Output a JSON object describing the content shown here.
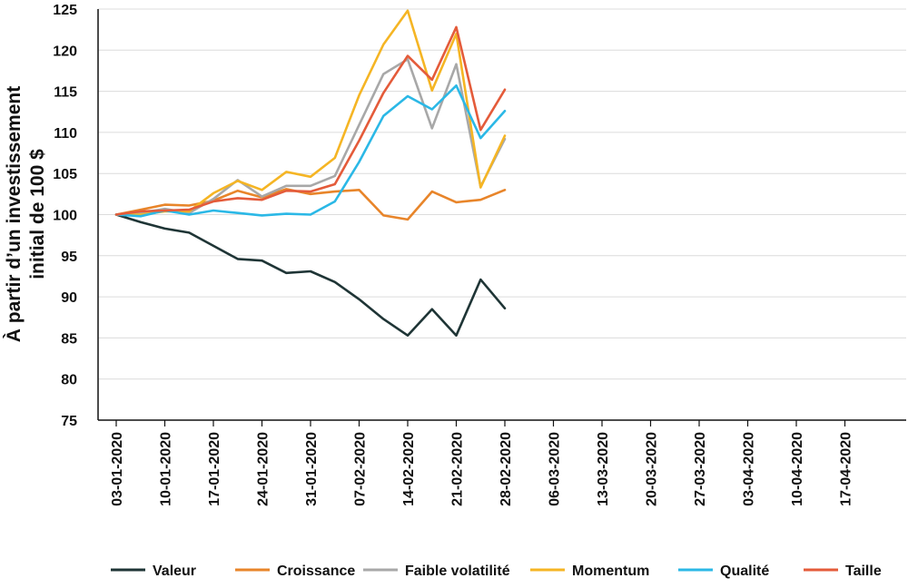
{
  "chart_data": {
    "type": "line",
    "ylabel_lines": [
      "À partir d’un investissement",
      "initial de 100 $"
    ],
    "ylim": [
      75,
      125
    ],
    "yticks": [
      75,
      80,
      85,
      90,
      95,
      100,
      105,
      110,
      115,
      120,
      125
    ],
    "grid": "horizontal",
    "legend_position": "bottom",
    "x": [
      "03-01-2020",
      "10-01-2020",
      "17-01-2020",
      "24-01-2020",
      "31-01-2020",
      "07-02-2020",
      "14-02-2020",
      "21-02-2020",
      "28-02-2020",
      "06-03-2020",
      "13-03-2020",
      "20-03-2020",
      "27-03-2020",
      "03-04-2020",
      "10-04-2020",
      "17-04-2020"
    ],
    "x_plot_positions": [
      0,
      1,
      2,
      3,
      4,
      5,
      6,
      7,
      8,
      9,
      10,
      11,
      12,
      13,
      14,
      15
    ],
    "series": [
      {
        "name": "Valeur",
        "color": "#1f3536",
        "values": [
          [
            0,
            100
          ],
          [
            0.5,
            99.1
          ],
          [
            1,
            98.3
          ],
          [
            1.5,
            97.8
          ],
          [
            2,
            96.2
          ],
          [
            2.5,
            94.6
          ],
          [
            3,
            94.4
          ],
          [
            3.5,
            92.9
          ],
          [
            4,
            93.1
          ],
          [
            4.5,
            91.8
          ],
          [
            5,
            89.7
          ],
          [
            5.5,
            87.3
          ],
          [
            6,
            85.3
          ],
          [
            6.5,
            88.5
          ],
          [
            7,
            85.3
          ],
          [
            7.5,
            92.1
          ],
          [
            8,
            88.6
          ]
        ]
      },
      {
        "name": "Croissance",
        "color": "#e8852a",
        "values": [
          [
            0,
            100
          ],
          [
            0.5,
            100.6
          ],
          [
            1,
            101.2
          ],
          [
            1.5,
            101.1
          ],
          [
            2,
            101.7
          ],
          [
            2.5,
            102.9
          ],
          [
            3,
            102.1
          ],
          [
            3.5,
            103.1
          ],
          [
            4,
            102.5
          ],
          [
            4.5,
            102.8
          ],
          [
            5,
            103
          ],
          [
            5.5,
            99.9
          ],
          [
            6,
            99.4
          ],
          [
            6.5,
            102.8
          ],
          [
            7,
            101.5
          ],
          [
            7.5,
            101.8
          ],
          [
            8,
            103
          ]
        ]
      },
      {
        "name": "Faible volatilité",
        "color": "#a8a8a8",
        "values": [
          [
            0,
            100
          ],
          [
            0.5,
            100.2
          ],
          [
            1,
            100.7
          ],
          [
            1.5,
            100.2
          ],
          [
            2,
            101.9
          ],
          [
            2.5,
            104.2
          ],
          [
            3,
            102.2
          ],
          [
            3.5,
            103.5
          ],
          [
            4,
            103.5
          ],
          [
            4.5,
            104.7
          ],
          [
            5,
            110.9
          ],
          [
            5.5,
            117.1
          ],
          [
            6,
            118.9
          ],
          [
            6.5,
            110.5
          ],
          [
            7,
            118.3
          ],
          [
            7.5,
            103.4
          ],
          [
            8,
            109.2
          ]
        ]
      },
      {
        "name": "Momentum",
        "color": "#f5b524",
        "values": [
          [
            0,
            100
          ],
          [
            0.5,
            100
          ],
          [
            1,
            100.4
          ],
          [
            1.5,
            100.4
          ],
          [
            2,
            102.6
          ],
          [
            2.5,
            104.1
          ],
          [
            3,
            103
          ],
          [
            3.5,
            105.2
          ],
          [
            4,
            104.6
          ],
          [
            4.5,
            106.9
          ],
          [
            5,
            114.5
          ],
          [
            5.5,
            120.7
          ],
          [
            6,
            124.8
          ],
          [
            6.5,
            115.1
          ],
          [
            7,
            122
          ],
          [
            7.5,
            103.3
          ],
          [
            8,
            109.6
          ]
        ]
      },
      {
        "name": "Qualité",
        "color": "#2bb8e6",
        "values": [
          [
            0,
            100
          ],
          [
            0.5,
            99.8
          ],
          [
            1,
            100.5
          ],
          [
            1.5,
            100
          ],
          [
            2,
            100.5
          ],
          [
            2.5,
            100.2
          ],
          [
            3,
            99.9
          ],
          [
            3.5,
            100.1
          ],
          [
            4,
            100
          ],
          [
            4.5,
            101.6
          ],
          [
            5,
            106.4
          ],
          [
            5.5,
            112
          ],
          [
            6,
            114.4
          ],
          [
            6.5,
            112.8
          ],
          [
            7,
            115.7
          ],
          [
            7.5,
            109.3
          ],
          [
            8,
            112.6
          ]
        ]
      },
      {
        "name": "Taille",
        "color": "#e45b3a",
        "values": [
          [
            0,
            100
          ],
          [
            0.5,
            100.4
          ],
          [
            1,
            100.5
          ],
          [
            1.5,
            100.6
          ],
          [
            2,
            101.6
          ],
          [
            2.5,
            102
          ],
          [
            3,
            101.8
          ],
          [
            3.5,
            102.9
          ],
          [
            4,
            102.8
          ],
          [
            4.5,
            103.7
          ],
          [
            5,
            109
          ],
          [
            5.5,
            114.8
          ],
          [
            6,
            119.3
          ],
          [
            6.5,
            116.4
          ],
          [
            7,
            122.8
          ],
          [
            7.5,
            110.3
          ],
          [
            8,
            115.2
          ]
        ]
      }
    ]
  }
}
